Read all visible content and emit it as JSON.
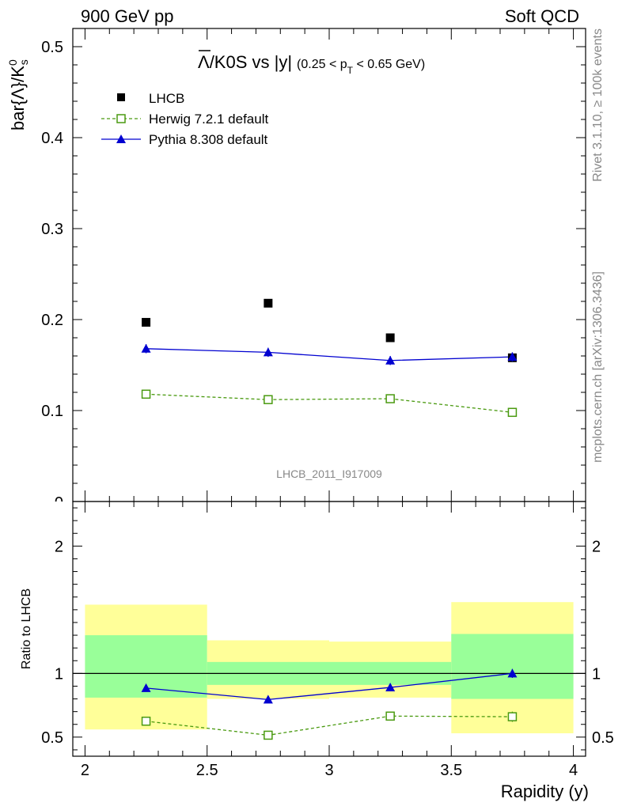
{
  "header": {
    "left": "900 GeV pp",
    "right": "Soft QCD"
  },
  "side_labels": {
    "rivet": "Rivet 3.1.10, ≥ 100k events",
    "mcplots": "mcplots.cern.ch [arXiv:1306.3436]"
  },
  "watermark": "LHCB_2011_I917009",
  "colors": {
    "lhcb": "#000000",
    "herwig": "#4a9a10",
    "pythia": "#0000d0",
    "band_yellow": "#ffff99",
    "band_green": "#99ff99"
  },
  "chart_data": [
    {
      "type": "scatter",
      "panel": "main",
      "title_main": "Λ/K0S vs |y|",
      "title_cut": "(0.25 < p",
      "title_cut_sub": "T",
      "title_cut_tail": " < 0.65 GeV)",
      "ylabel": "bar{Λ}/K",
      "ylabel_sup": "0",
      "ylabel_sub": "s",
      "xlim": [
        1.95,
        4.05
      ],
      "ylim": [
        0,
        0.52
      ],
      "yticks": [
        0.1,
        0.2,
        0.3,
        0.4,
        0.5
      ],
      "ytick_labels": [
        "0.1",
        "0.2",
        "0.3",
        "0.4",
        "0.5"
      ],
      "grid": false,
      "legend_position": "top-left",
      "series": [
        {
          "name": "LHCB",
          "style": "markers",
          "x": [
            2.25,
            2.75,
            3.25,
            3.75
          ],
          "y": [
            0.197,
            0.218,
            0.18,
            0.158
          ],
          "yerr": [
            0.002,
            0.002,
            0.002,
            0.003
          ]
        },
        {
          "name": "Herwig 7.2.1 default",
          "style": "dashed-open-square",
          "x": [
            2.25,
            2.75,
            3.25,
            3.75
          ],
          "y": [
            0.118,
            0.112,
            0.113,
            0.098
          ],
          "yerr": [
            0.002,
            0.002,
            0.002,
            0.002
          ]
        },
        {
          "name": "Pythia 8.308 default",
          "style": "solid-triangle",
          "x": [
            2.25,
            2.75,
            3.25,
            3.75
          ],
          "y": [
            0.168,
            0.164,
            0.155,
            0.159
          ],
          "yerr": [
            0.005,
            0.005,
            0.005,
            0.005
          ]
        }
      ]
    },
    {
      "type": "scatter",
      "panel": "ratio",
      "ylabel": "Ratio to LHCB",
      "xlabel": "Rapidity (y)",
      "xlim": [
        1.95,
        4.05
      ],
      "ylim": [
        0.35,
        2.35
      ],
      "xticks": [
        2,
        2.5,
        3,
        3.5,
        4
      ],
      "xtick_labels": [
        "2",
        "2.5",
        "3",
        "3.5",
        "4"
      ],
      "yticks": [
        0.5,
        1,
        2
      ],
      "ytick_labels": [
        "0.5",
        "1",
        "2"
      ],
      "bands": [
        {
          "x0": 2.0,
          "x1": 2.5,
          "yellow": [
            0.56,
            1.54
          ],
          "green": [
            0.81,
            1.3
          ]
        },
        {
          "x0": 2.5,
          "x1": 3.0,
          "yellow": [
            0.8,
            1.26
          ],
          "green": [
            0.91,
            1.09
          ]
        },
        {
          "x0": 3.0,
          "x1": 3.5,
          "yellow": [
            0.81,
            1.25
          ],
          "green": [
            0.91,
            1.09
          ]
        },
        {
          "x0": 3.5,
          "x1": 4.0,
          "yellow": [
            0.53,
            1.56
          ],
          "green": [
            0.8,
            1.31
          ]
        }
      ],
      "series": [
        {
          "name": "Herwig 7.2.1 default",
          "style": "dashed-open-square",
          "x": [
            2.25,
            2.75,
            3.25,
            3.75
          ],
          "y": [
            0.625,
            0.515,
            0.665,
            0.66
          ],
          "yerr": [
            0.02,
            0.025,
            0.03,
            0.04
          ]
        },
        {
          "name": "Pythia 8.308 default",
          "style": "solid-triangle",
          "x": [
            2.25,
            2.75,
            3.25,
            3.75
          ],
          "y": [
            0.885,
            0.795,
            0.89,
            1.0
          ],
          "yerr": [
            0.02,
            0.025,
            0.025,
            0.035
          ]
        }
      ]
    }
  ]
}
